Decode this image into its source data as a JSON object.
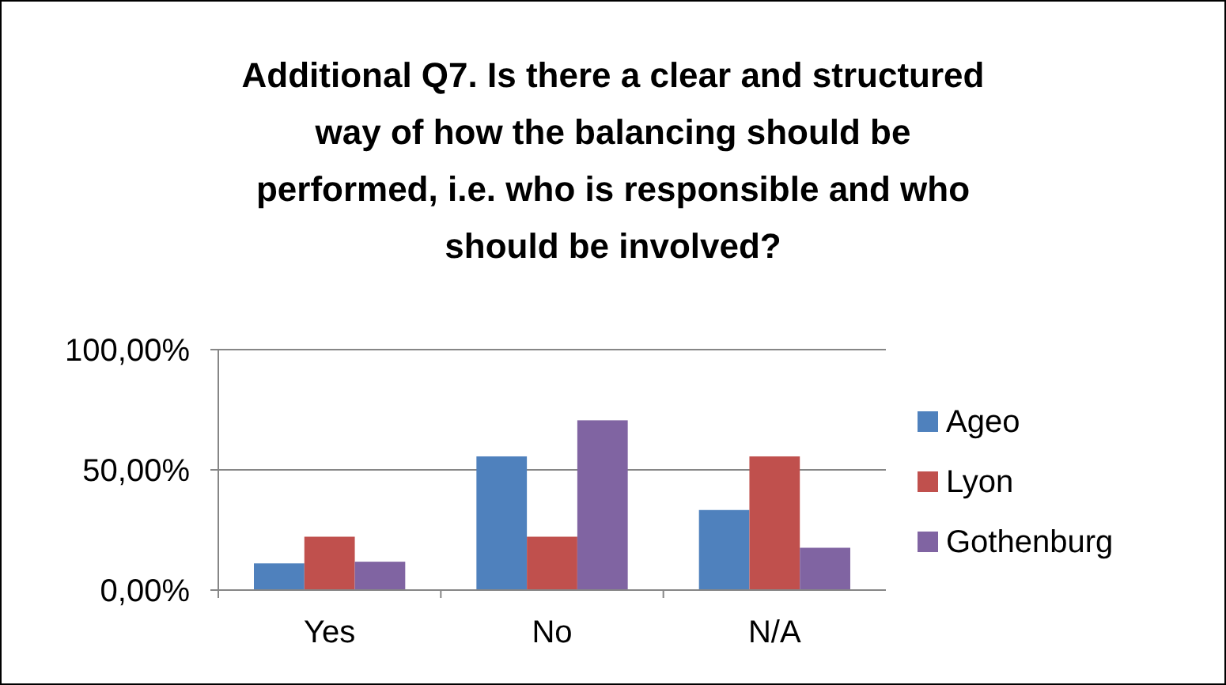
{
  "chart_data": {
    "type": "bar",
    "title": "Additional Q7. Is there a clear and structured way of how the balancing should be performed, i.e. who is responsible and who should be involved?",
    "categories": [
      "Yes",
      "No",
      "N/A"
    ],
    "series": [
      {
        "name": "Ageo",
        "color": "#4f81bd",
        "values": [
          11.1,
          55.6,
          33.3
        ]
      },
      {
        "name": "Lyon",
        "color": "#c0504d",
        "values": [
          22.2,
          22.2,
          55.6
        ]
      },
      {
        "name": "Gothenburg",
        "color": "#8064a2",
        "values": [
          11.8,
          70.6,
          17.6
        ]
      }
    ],
    "ylim": [
      0,
      100
    ],
    "yticks": [
      {
        "value": 0,
        "label": "0,00%"
      },
      {
        "value": 50,
        "label": "50,00%"
      },
      {
        "value": 100,
        "label": "100,00%"
      }
    ],
    "grid": "y",
    "legend": "right"
  }
}
